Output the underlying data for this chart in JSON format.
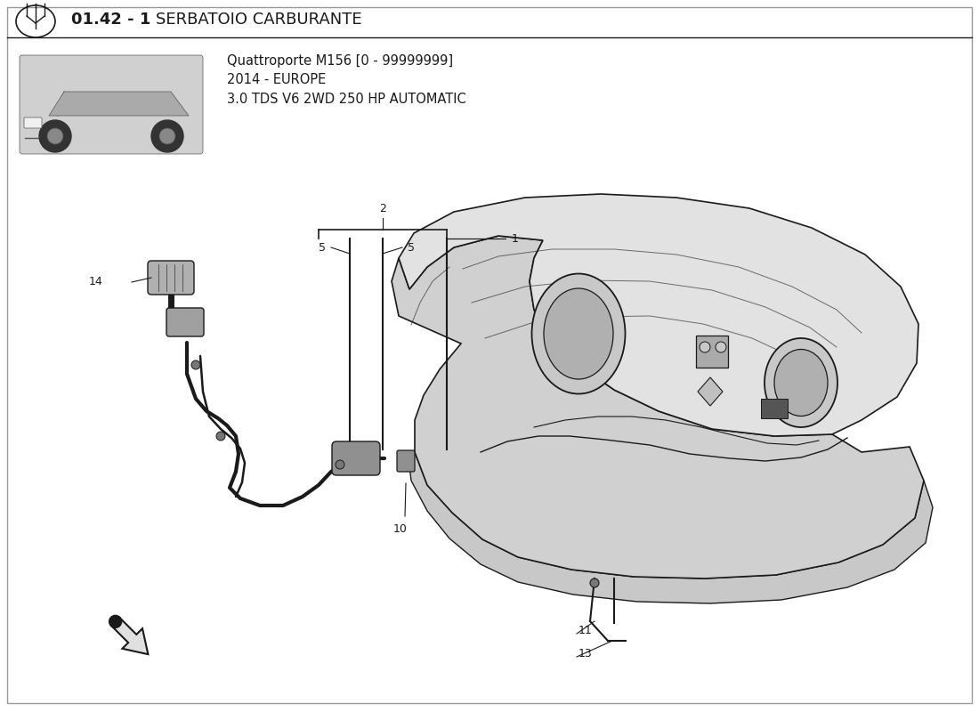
{
  "bg_color": "#ffffff",
  "title_bold": "01.42 - 1",
  "title_normal": "SERBATOIO CARBURANTE",
  "subtitle_lines": [
    "Quattroporte M156 [0 - 99999999]",
    "2014 - EUROPE",
    "3.0 TDS V6 2WD 250 HP AUTOMATIC"
  ],
  "line_color": "#1a1a1a",
  "title_fontsize": 13,
  "subtitle_fontsize": 10.5,
  "label_fontsize": 9,
  "border_color": "#999999"
}
